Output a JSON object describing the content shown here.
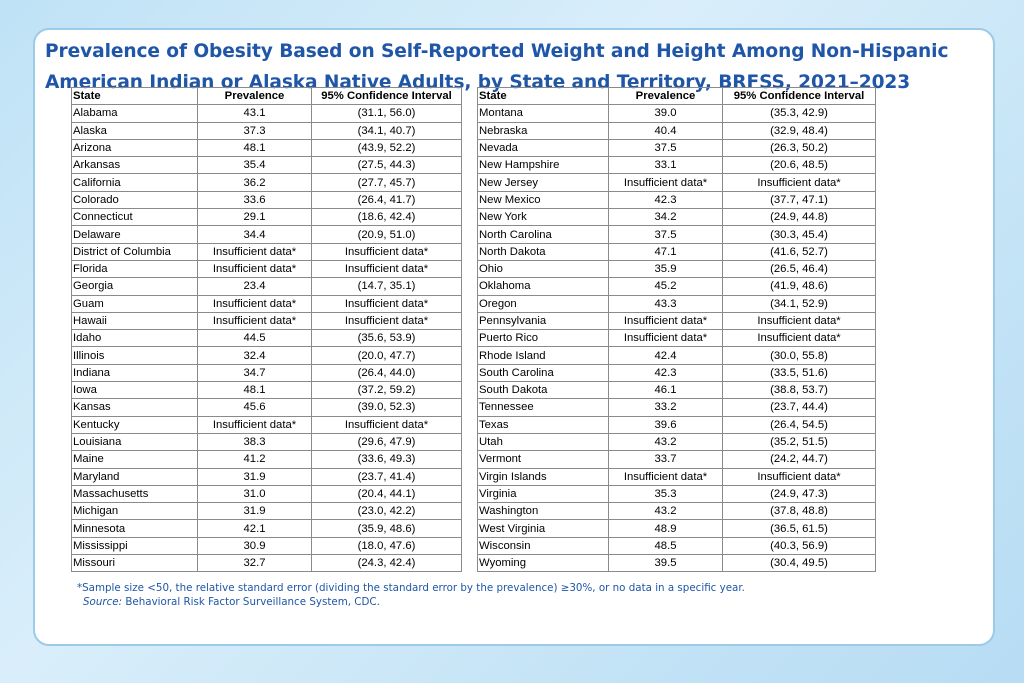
{
  "title": {
    "line1": "Prevalence of Obesity Based on Self-Reported Weight and Height Among Non-Hispanic",
    "line2": "American Indian or Alaska Native Adults, by State and Territory, BRFSS, 2021–2023"
  },
  "table_headers": [
    "State",
    "Prevalence",
    "95% Confidence Interval"
  ],
  "chart_data": {
    "type": "table",
    "columns": [
      "State",
      "Prevalence",
      "95% Confidence Interval"
    ],
    "left_rows": [
      [
        "Alabama",
        "43.1",
        "(31.1, 56.0)"
      ],
      [
        "Alaska",
        "37.3",
        "(34.1, 40.7)"
      ],
      [
        "Arizona",
        "48.1",
        "(43.9, 52.2)"
      ],
      [
        "Arkansas",
        "35.4",
        "(27.5, 44.3)"
      ],
      [
        "California",
        "36.2",
        "(27.7, 45.7)"
      ],
      [
        "Colorado",
        "33.6",
        "(26.4, 41.7)"
      ],
      [
        "Connecticut",
        "29.1",
        "(18.6, 42.4)"
      ],
      [
        "Delaware",
        "34.4",
        "(20.9, 51.0)"
      ],
      [
        "District of Columbia",
        "Insufficient data*",
        "Insufficient data*"
      ],
      [
        "Florida",
        "Insufficient data*",
        "Insufficient data*"
      ],
      [
        "Georgia",
        "23.4",
        "(14.7, 35.1)"
      ],
      [
        "Guam",
        "Insufficient data*",
        "Insufficient data*"
      ],
      [
        "Hawaii",
        "Insufficient data*",
        "Insufficient data*"
      ],
      [
        "Idaho",
        "44.5",
        "(35.6, 53.9)"
      ],
      [
        "Illinois",
        "32.4",
        "(20.0, 47.7)"
      ],
      [
        "Indiana",
        "34.7",
        "(26.4, 44.0)"
      ],
      [
        "Iowa",
        "48.1",
        "(37.2, 59.2)"
      ],
      [
        "Kansas",
        "45.6",
        "(39.0, 52.3)"
      ],
      [
        "Kentucky",
        "Insufficient data*",
        "Insufficient data*"
      ],
      [
        "Louisiana",
        "38.3",
        "(29.6, 47.9)"
      ],
      [
        "Maine",
        "41.2",
        "(33.6, 49.3)"
      ],
      [
        "Maryland",
        "31.9",
        "(23.7, 41.4)"
      ],
      [
        "Massachusetts",
        "31.0",
        "(20.4, 44.1)"
      ],
      [
        "Michigan",
        "31.9",
        "(23.0, 42.2)"
      ],
      [
        "Minnesota",
        "42.1",
        "(35.9, 48.6)"
      ],
      [
        "Mississippi",
        "30.9",
        "(18.0, 47.6)"
      ],
      [
        "Missouri",
        "32.7",
        "(24.3, 42.4)"
      ]
    ],
    "right_rows": [
      [
        "Montana",
        "39.0",
        "(35.3, 42.9)"
      ],
      [
        "Nebraska",
        "40.4",
        "(32.9, 48.4)"
      ],
      [
        "Nevada",
        "37.5",
        "(26.3, 50.2)"
      ],
      [
        "New Hampshire",
        "33.1",
        "(20.6, 48.5)"
      ],
      [
        "New Jersey",
        "Insufficient data*",
        "Insufficient data*"
      ],
      [
        "New Mexico",
        "42.3",
        "(37.7, 47.1)"
      ],
      [
        "New York",
        "34.2",
        "(24.9, 44.8)"
      ],
      [
        "North Carolina",
        "37.5",
        "(30.3, 45.4)"
      ],
      [
        "North Dakota",
        "47.1",
        "(41.6, 52.7)"
      ],
      [
        "Ohio",
        "35.9",
        "(26.5, 46.4)"
      ],
      [
        "Oklahoma",
        "45.2",
        "(41.9, 48.6)"
      ],
      [
        "Oregon",
        "43.3",
        "(34.1, 52.9)"
      ],
      [
        "Pennsylvania",
        "Insufficient data*",
        "Insufficient data*"
      ],
      [
        "Puerto Rico",
        "Insufficient data*",
        "Insufficient data*"
      ],
      [
        "Rhode Island",
        "42.4",
        "(30.0, 55.8)"
      ],
      [
        "South Carolina",
        "42.3",
        "(33.5, 51.6)"
      ],
      [
        "South Dakota",
        "46.1",
        "(38.8, 53.7)"
      ],
      [
        "Tennessee",
        "33.2",
        "(23.7, 44.4)"
      ],
      [
        "Texas",
        "39.6",
        "(26.4, 54.5)"
      ],
      [
        "Utah",
        "43.2",
        "(35.2, 51.5)"
      ],
      [
        "Vermont",
        "33.7",
        "(24.2, 44.7)"
      ],
      [
        "Virgin Islands",
        "Insufficient data*",
        "Insufficient data*"
      ],
      [
        "Virginia",
        "35.3",
        "(24.9, 47.3)"
      ],
      [
        "Washington",
        "43.2",
        "(37.8, 48.8)"
      ],
      [
        "West Virginia",
        "48.9",
        "(36.5, 61.5)"
      ],
      [
        "Wisconsin",
        "48.5",
        "(40.3, 56.9)"
      ],
      [
        "Wyoming",
        "39.5",
        "(30.4, 49.5)"
      ]
    ]
  },
  "footnote": "*Sample size <50, the relative standard error (dividing the standard error by the prevalence) ≥30%, or no data in a specific year.",
  "source": {
    "label": "Source:",
    "text": " Behavioral Risk Factor Surveillance System, CDC."
  },
  "colors": {
    "title": "#1f56a8",
    "panel_border": "#9ccbe8",
    "table_border": "#8a8a8a"
  }
}
